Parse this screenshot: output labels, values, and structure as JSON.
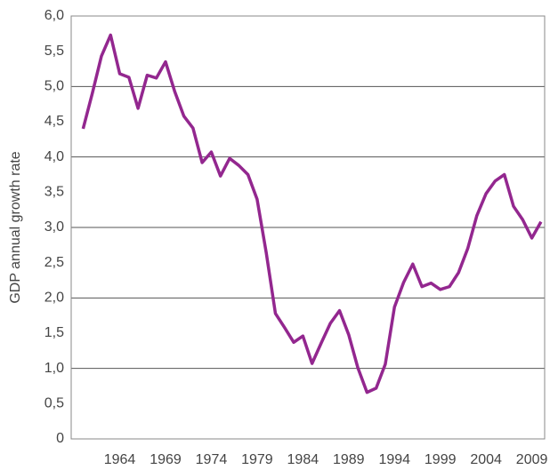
{
  "chart_data": {
    "type": "line",
    "y_label": "GDP annual growth rate",
    "x": [
      1960,
      1961,
      1962,
      1963,
      1964,
      1965,
      1966,
      1967,
      1968,
      1969,
      1970,
      1971,
      1972,
      1973,
      1974,
      1975,
      1976,
      1977,
      1978,
      1979,
      1980,
      1981,
      1982,
      1983,
      1984,
      1985,
      1986,
      1987,
      1988,
      1989,
      1990,
      1991,
      1992,
      1993,
      1994,
      1995,
      1996,
      1997,
      1998,
      1999,
      2000,
      2001,
      2002,
      2003,
      2004,
      2005,
      2006,
      2007,
      2008,
      2009,
      2010
    ],
    "series": [
      {
        "color": "#93278f",
        "values": [
          4.4,
          4.9,
          5.43,
          5.73,
          5.18,
          5.13,
          4.69,
          5.16,
          5.12,
          5.35,
          4.93,
          4.58,
          4.41,
          3.92,
          4.07,
          3.73,
          3.98,
          3.88,
          3.75,
          3.4,
          2.64,
          1.78,
          1.58,
          1.37,
          1.46,
          1.07,
          1.36,
          1.64,
          1.82,
          1.48,
          1.01,
          0.66,
          0.72,
          1.06,
          1.87,
          2.22,
          2.48,
          2.16,
          2.21,
          2.12,
          2.16,
          2.36,
          2.7,
          3.17,
          3.48,
          3.66,
          3.75,
          3.3,
          3.11,
          2.85,
          3.08
        ]
      }
    ],
    "xlim": [
      1958.7,
      2010.4
    ],
    "xticks": [
      1964,
      1969,
      1974,
      1979,
      1984,
      1989,
      1994,
      1999,
      2004,
      2009
    ],
    "ylim": [
      0,
      6
    ],
    "yticks": [
      0,
      {
        "value": 0.5,
        "label": "0,5"
      },
      {
        "value": 1,
        "label": "1,0"
      },
      {
        "value": 1.5,
        "label": "1,5"
      },
      {
        "value": 2,
        "label": "2,0"
      },
      {
        "value": 2.5,
        "label": "2,5"
      },
      {
        "value": 3,
        "label": "3,0"
      },
      {
        "value": 3.5,
        "label": "3,5"
      },
      {
        "value": 4,
        "label": "4,0"
      },
      {
        "value": 4.5,
        "label": "4,5"
      },
      {
        "value": 5,
        "label": "5,0"
      },
      {
        "value": 5.5,
        "label": "5,5"
      },
      {
        "value": 6,
        "label": "6,0"
      }
    ],
    "grid": true
  }
}
